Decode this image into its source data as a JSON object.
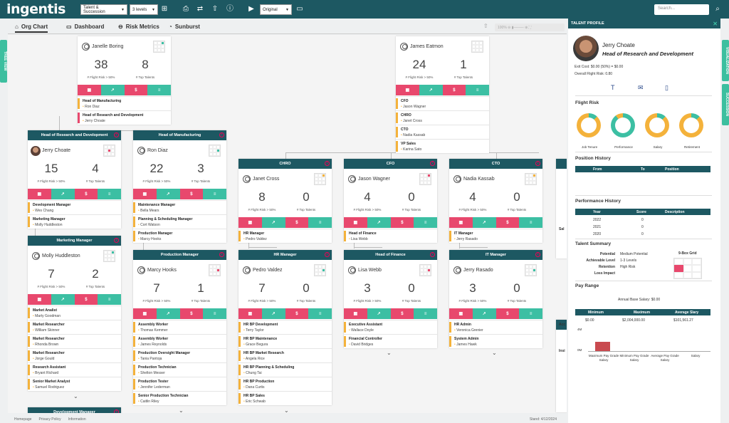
{
  "app": {
    "logo": "ingentis",
    "view_select": "Talent & Succession",
    "levels_select": "3 levels",
    "version_select": "Original",
    "search_placeholder": "Search..."
  },
  "tabs": [
    {
      "label": "Org Chart"
    },
    {
      "label": "Dashboard"
    },
    {
      "label": "Risk Metrics"
    },
    {
      "label": "Sunburst"
    }
  ],
  "side_tabs": {
    "left": "TREE VIEW",
    "right1": "VISUALIZATION",
    "right2": "SUCCESSION"
  },
  "zoom": {
    "label": "100%"
  },
  "labels": {
    "flight": "# Flight Risk > 50%",
    "top": "# Top Talents"
  },
  "cards": {
    "janelle": {
      "name": "Janelle Boring",
      "flight": "38",
      "top": "8",
      "reports": [
        {
          "title": "Head of Manufacturing",
          "name": "Ron Diaz"
        },
        {
          "title": "Head of Research and Development",
          "name": "Jerry Choate"
        }
      ]
    },
    "james": {
      "name": "James Eatmon",
      "flight": "24",
      "top": "1",
      "reports": [
        {
          "title": "CFO",
          "name": "Jason Wagner"
        },
        {
          "title": "CHRO",
          "name": "Janet Cross"
        },
        {
          "title": "CTO",
          "name": "Nadia Kassab"
        },
        {
          "title": "VP Sales",
          "name": "Karina Sato"
        }
      ]
    },
    "jerry": {
      "head": "Head of Research and Development",
      "name": "Jerry Choate",
      "flight": "15",
      "top": "4",
      "reports": [
        {
          "title": "Development Manager",
          "name": "Wes Chang"
        },
        {
          "title": "Marketing Manager",
          "name": "Molly Huddleston"
        }
      ]
    },
    "ron": {
      "head": "Head of Manufacturing",
      "name": "Ron Diaz",
      "flight": "22",
      "top": "3",
      "reports": [
        {
          "title": "Maintenance Manager",
          "name": "Bella Mears"
        },
        {
          "title": "Planning & Scheduling Manager",
          "name": "Cort Watson"
        },
        {
          "title": "Production Manager",
          "name": "Marcy Hooks"
        }
      ]
    },
    "janet": {
      "head": "CHRO",
      "name": "Janet Cross",
      "flight": "8",
      "top": "0",
      "reports": [
        {
          "title": "HR Manager",
          "name": "Pedro Valdez"
        }
      ]
    },
    "jason": {
      "head": "CFO",
      "name": "Jason Wagner",
      "flight": "4",
      "top": "0",
      "reports": [
        {
          "title": "Head of Finance",
          "name": "Lisa Webb"
        }
      ]
    },
    "nadia": {
      "head": "CTO",
      "name": "Nadia Kassab",
      "flight": "4",
      "top": "0",
      "reports": [
        {
          "title": "IT Manager",
          "name": "Jerry Rasado"
        }
      ]
    },
    "molly": {
      "head": "Marketing Manager",
      "name": "Molly Huddleston",
      "flight": "7",
      "top": "2",
      "reports": [
        {
          "title": "Market Analist",
          "name": "Marty Goodman"
        },
        {
          "title": "Market Researcher",
          "name": "William Skinner"
        },
        {
          "title": "Market Researcher",
          "name": "Rhonda Brown"
        },
        {
          "title": "Market Researcher",
          "name": "Jorge Gould"
        },
        {
          "title": "Research Assistant",
          "name": "Bryant Richard"
        },
        {
          "title": "Senior Market Analyst",
          "name": "Samuel Rodriguez"
        }
      ]
    },
    "marcy": {
      "head": "Production Manager",
      "name": "Marcy Hooks",
      "flight": "7",
      "top": "1",
      "reports": [
        {
          "title": "Assembly Worker",
          "name": "Thomas Kemmer"
        },
        {
          "title": "Assembly Worker",
          "name": "James Reynolds"
        },
        {
          "title": "Production Oversight Manager",
          "name": "Tania Pantoja"
        },
        {
          "title": "Production Technician",
          "name": "Shelton Messer"
        },
        {
          "title": "Production Tester",
          "name": "Jennifer Lederman"
        },
        {
          "title": "Senior Production Technician",
          "name": "Caitlin Riley"
        }
      ]
    },
    "pedro": {
      "head": "HR Manager",
      "name": "Pedro Valdez",
      "flight": "7",
      "top": "0",
      "reports": [
        {
          "title": "HR BP Development",
          "name": "Terry Taylor"
        },
        {
          "title": "HR BP Maintenance",
          "name": "Grace Begura"
        },
        {
          "title": "HR BP Market Research",
          "name": "Angela Rice"
        },
        {
          "title": "HR BP Planning & Scheduling",
          "name": "Chung Tai"
        },
        {
          "title": "HR BP Production",
          "name": "Dana Curtis"
        },
        {
          "title": "HR BP Sales",
          "name": "Eric Schwab"
        }
      ]
    },
    "lisa": {
      "head": "Head of Finance",
      "name": "Lisa Webb",
      "flight": "3",
      "top": "0",
      "reports": [
        {
          "title": "Executive Assistant",
          "name": "Wallace Doyle"
        },
        {
          "title": "Financial Controller",
          "name": "David Bridges"
        }
      ]
    },
    "jerryr": {
      "head": "IT Manager",
      "name": "Jerry Rasado",
      "flight": "3",
      "top": "0",
      "reports": [
        {
          "title": "HR Admin",
          "name": "Veronica Grenier"
        },
        {
          "title": "System Admin",
          "name": "James Hawk"
        }
      ]
    },
    "dev": {
      "head": "Development Manager"
    }
  },
  "partial": {
    "sal": "Sal",
    "acc": "Acc",
    "ins": "Insi"
  },
  "profile": {
    "header": "TALENT PROFILE",
    "name": "Jerry Choate",
    "title": "Head of Research and Development",
    "exit_cost": "Exit Cost: $0.00 (50%) = $0.00",
    "flight_risk": "Overall Flight Risk: 0.80",
    "flight_section": "Flight Risk",
    "donuts": [
      {
        "label": "Job Tenure"
      },
      {
        "label": "Performance"
      },
      {
        "label": "Salary"
      },
      {
        "label": "Retirement"
      }
    ],
    "position_history": {
      "title": "Position History",
      "cols": [
        "From",
        "To",
        "Position"
      ]
    },
    "performance_history": {
      "title": "Performance History",
      "cols": [
        "Year",
        "Score",
        "Description"
      ],
      "rows": [
        [
          "2022",
          "0"
        ],
        [
          "2021",
          "0"
        ],
        [
          "2020",
          "0"
        ]
      ]
    },
    "talent_summary": {
      "title": "Talent Summary",
      "rows": [
        [
          "Potential",
          "Medium Potential"
        ],
        [
          "Achievable Level",
          "1-3 Levels"
        ],
        [
          "Retention",
          "High Risk"
        ],
        [
          "Loss Impact",
          ""
        ]
      ],
      "ninebox_label": "9-Box Grid"
    },
    "pay_range": {
      "title": "Pay Range",
      "annual": "Annual Base Salary: $0.00",
      "cols": [
        "Minimum",
        "Maximum",
        "Average Slary"
      ],
      "vals": [
        "$0.00",
        "$2,004,000.00",
        "$101,561.27"
      ],
      "y_ticks": [
        "4M",
        "0M"
      ],
      "x_labels": [
        "Maximum Pay Grade Salary",
        "Minimum Pay Grade Salary",
        "Average Pay Grade Salary",
        "Salary"
      ]
    }
  },
  "footer": {
    "links": [
      "Homepage",
      "Privacy Policy",
      "Information"
    ],
    "stand": "Stand: 4/12/2024"
  },
  "colors": {
    "teal": "#1d5862",
    "pink": "#e8486d",
    "green": "#3cbfa3",
    "amber": "#f4b23b"
  }
}
